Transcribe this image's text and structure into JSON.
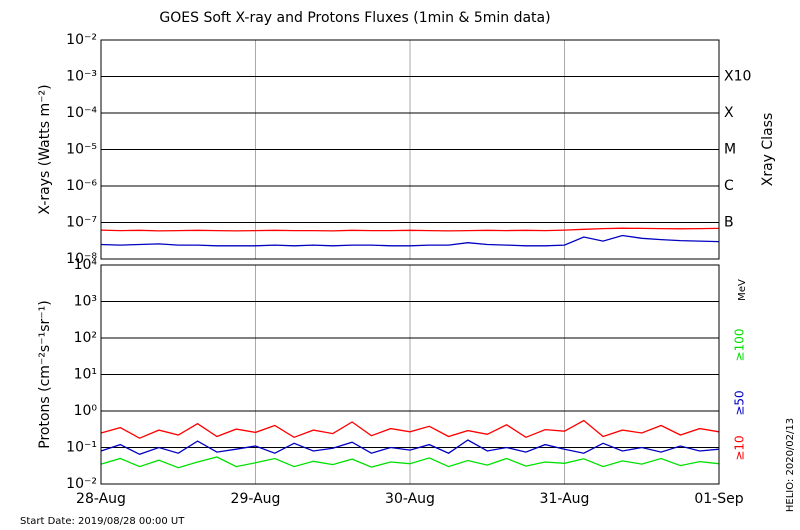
{
  "chart_data": [
    {
      "type": "line",
      "title": "GOES Soft X-ray and Protons Fluxes   (1min & 5min data)",
      "y_label": "X-rays (Watts m⁻²)",
      "y2_label": "Xray Class",
      "log_scale": true,
      "grid": true,
      "xlim": [
        0,
        4
      ],
      "ylim": [
        1e-08,
        0.01
      ],
      "yticks": [
        {
          "value": 0.01,
          "label": "10⁻²"
        },
        {
          "value": 0.001,
          "label": "10⁻³"
        },
        {
          "value": 0.0001,
          "label": "10⁻⁴"
        },
        {
          "value": 1e-05,
          "label": "10⁻⁵"
        },
        {
          "value": 1e-06,
          "label": "10⁻⁶"
        },
        {
          "value": 1e-07,
          "label": "10⁻⁷"
        },
        {
          "value": 1e-08,
          "label": "10⁻⁸"
        }
      ],
      "class_labels": [
        {
          "value": 0.001,
          "label": "X10"
        },
        {
          "value": 0.0001,
          "label": "X"
        },
        {
          "value": 1e-05,
          "label": "M"
        },
        {
          "value": 1e-06,
          "label": "C"
        },
        {
          "value": 1e-07,
          "label": "B"
        }
      ],
      "x": [
        0,
        0.125,
        0.25,
        0.375,
        0.5,
        0.625,
        0.75,
        0.875,
        1,
        1.125,
        1.25,
        1.375,
        1.5,
        1.625,
        1.75,
        1.875,
        2,
        2.125,
        2.25,
        2.375,
        2.5,
        2.625,
        2.75,
        2.875,
        3,
        3.125,
        3.25,
        3.375,
        3.5,
        3.625,
        3.75,
        3.875,
        4
      ],
      "series": [
        {
          "color": "#ff0000",
          "values": [
            6.2e-08,
            6e-08,
            6.1e-08,
            5.9e-08,
            6e-08,
            6.1e-08,
            6e-08,
            5.9e-08,
            6e-08,
            6.1e-08,
            6e-08,
            6e-08,
            5.9e-08,
            6.1e-08,
            6e-08,
            6e-08,
            6.1e-08,
            6e-08,
            5.9e-08,
            6e-08,
            6.1e-08,
            6e-08,
            6.1e-08,
            6e-08,
            6.2e-08,
            6.5e-08,
            6.8e-08,
            7e-08,
            6.9e-08,
            6.8e-08,
            6.7e-08,
            6.8e-08,
            6.9e-08
          ]
        },
        {
          "color": "#0000c0",
          "values": [
            2.5e-08,
            2.4e-08,
            2.5e-08,
            2.6e-08,
            2.4e-08,
            2.4e-08,
            2.3e-08,
            2.3e-08,
            2.3e-08,
            2.4e-08,
            2.3e-08,
            2.4e-08,
            2.3e-08,
            2.4e-08,
            2.4e-08,
            2.3e-08,
            2.3e-08,
            2.4e-08,
            2.4e-08,
            2.8e-08,
            2.5e-08,
            2.4e-08,
            2.3e-08,
            2.3e-08,
            2.4e-08,
            4e-08,
            3.1e-08,
            4.4e-08,
            3.7e-08,
            3.4e-08,
            3.2e-08,
            3.1e-08,
            3e-08
          ]
        }
      ]
    },
    {
      "type": "line",
      "y_label": "Protons (cm⁻²s⁻¹sr⁻¹)",
      "unit_label": "MeV",
      "log_scale": true,
      "grid": true,
      "threshold": 10,
      "xlim": [
        0,
        4
      ],
      "ylim": [
        0.01,
        10000
      ],
      "xticks": [
        {
          "value": 0,
          "label": "28-Aug"
        },
        {
          "value": 1,
          "label": "29-Aug"
        },
        {
          "value": 2,
          "label": "30-Aug"
        },
        {
          "value": 3,
          "label": "31-Aug"
        },
        {
          "value": 4,
          "label": "01-Sep"
        }
      ],
      "yticks": [
        {
          "value": 10000,
          "label": "10⁴"
        },
        {
          "value": 1000,
          "label": "10³"
        },
        {
          "value": 100,
          "label": "10²"
        },
        {
          "value": 10,
          "label": "10¹"
        },
        {
          "value": 1,
          "label": "10⁰"
        },
        {
          "value": 0.1,
          "label": "10⁻¹"
        },
        {
          "value": 0.01,
          "label": "10⁻²"
        }
      ],
      "x": [
        0,
        0.125,
        0.25,
        0.375,
        0.5,
        0.625,
        0.75,
        0.875,
        1,
        1.125,
        1.25,
        1.375,
        1.5,
        1.625,
        1.75,
        1.875,
        2,
        2.125,
        2.25,
        2.375,
        2.5,
        2.625,
        2.75,
        2.875,
        3,
        3.125,
        3.25,
        3.375,
        3.5,
        3.625,
        3.75,
        3.875,
        4
      ],
      "series": [
        {
          "name": "≥100",
          "color": "#00e000",
          "values": [
            0.035,
            0.05,
            0.03,
            0.045,
            0.028,
            0.04,
            0.055,
            0.03,
            0.038,
            0.05,
            0.03,
            0.042,
            0.034,
            0.048,
            0.029,
            0.04,
            0.036,
            0.052,
            0.03,
            0.044,
            0.033,
            0.05,
            0.031,
            0.04,
            0.037,
            0.049,
            0.03,
            0.043,
            0.035,
            0.05,
            0.032,
            0.041,
            0.036
          ]
        },
        {
          "name": "≥50",
          "color": "#0000c0",
          "values": [
            0.08,
            0.12,
            0.065,
            0.1,
            0.07,
            0.15,
            0.075,
            0.09,
            0.11,
            0.07,
            0.13,
            0.08,
            0.095,
            0.14,
            0.07,
            0.1,
            0.085,
            0.12,
            0.07,
            0.16,
            0.08,
            0.1,
            0.075,
            0.12,
            0.09,
            0.07,
            0.13,
            0.08,
            0.1,
            0.075,
            0.11,
            0.08,
            0.09
          ]
        },
        {
          "name": "≥10",
          "color": "#ff0000",
          "values": [
            0.25,
            0.35,
            0.18,
            0.3,
            0.22,
            0.45,
            0.2,
            0.32,
            0.26,
            0.4,
            0.19,
            0.3,
            0.24,
            0.5,
            0.21,
            0.33,
            0.27,
            0.38,
            0.2,
            0.29,
            0.23,
            0.42,
            0.19,
            0.31,
            0.28,
            0.55,
            0.2,
            0.3,
            0.25,
            0.4,
            0.22,
            0.33,
            0.27
          ]
        }
      ]
    }
  ],
  "footer": {
    "start_date": "Start Date: 2019/08/28 00:00 UT",
    "stamp": "HELIO: 2020/02/13"
  }
}
